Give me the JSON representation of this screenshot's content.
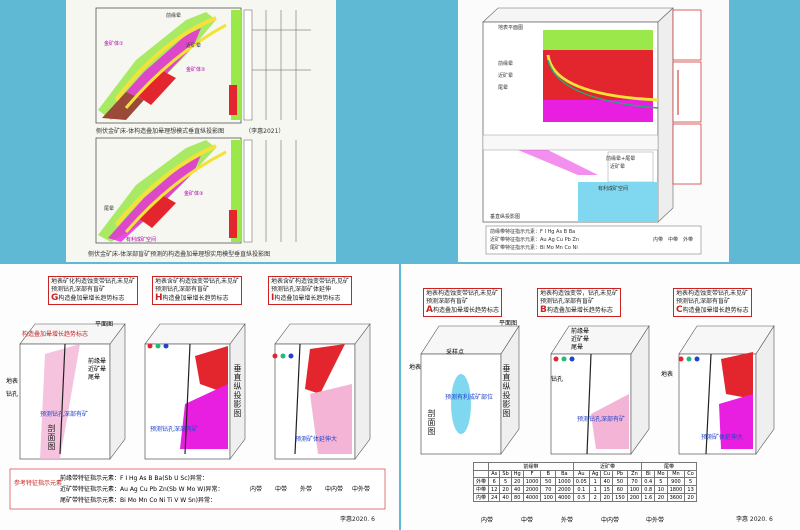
{
  "panel1": {
    "caption_top": "侧伏金矿床-体构造叠加晕理想模式垂直纵投影图　　　　（李惠2021）",
    "caption_bottom": "侧伏金矿床-体深部盲矿预测的构造叠加晕理想实用模型垂直纵投影图",
    "labels": [
      "金矿体①",
      "金矿体②",
      "金矿体③",
      "前缘晕",
      "近矿晕",
      "尾晕",
      "有利成矿空间"
    ]
  },
  "panel2": {
    "title": "地表平面图",
    "section_label": "垂直纵投影图",
    "side_labels": [
      "前缘晕",
      "近矿晕",
      "尾晕",
      "近矿晕",
      "前缘晕"
    ],
    "center_labels": [
      "前缘晕+尾晕",
      "近矿晕",
      "有利成矿空间"
    ],
    "legend_rows": [
      "前缘带特征指示元素：F I Hg As B Ba",
      "近矿带特征指示元素：Au Ag Cu Pb Zn",
      "尾矿带特征指示元素：Bi Mo Mn Co Ni"
    ],
    "legend_items": [
      "内带",
      "中带",
      "外带"
    ]
  },
  "panel3": {
    "boxes": [
      {
        "letter": "G",
        "line1": "地表矿化构造蚀变带钻孔未见矿",
        "line2": "预测钻孔深部有盲矿",
        "line3": "构造叠加晕增长趋势标志"
      },
      {
        "letter": "H",
        "line1": "地表含矿构造蚀变带钻孔未见矿",
        "line2": "预测钻孔深部有盲矿",
        "line3": "构造叠加晕增长趋势标志"
      },
      {
        "letter": "I",
        "line1": "地表含矿构造蚀变带钻孔见矿",
        "line2": "预测钻孔深部矿体延伸",
        "line3": "构造叠加晕增长趋势标志"
      }
    ],
    "labels": {
      "plane": "平面图",
      "surface": "地表",
      "drill": "钻孔",
      "section": "剖面图",
      "vertical": "垂直纵投影图",
      "predict": "预测钻孔深部有矿",
      "predict2": "预测矿体延伸大",
      "struct": "构造叠加晕增长趋势标志"
    },
    "halo_labels": [
      "前缘晕",
      "近矿晕",
      "尾晕"
    ],
    "legend_title": "参考特征指示元素",
    "legend_rows": [
      "前缘带特征指示元素：F I Hg As B Ba(Sb U Sc)异常：",
      "近矿带特征指示元素：Au Ag Cu Pb Zn(Sb W Mo W)异常：",
      "尾矿带特征指示元素：Bi Mo Mn Co Ni Ti V W Sn)异常："
    ],
    "legend_items": [
      "内带",
      "中带",
      "外带",
      "中内带",
      "中外带"
    ],
    "signature": "李惠2020. 6"
  },
  "panel4": {
    "boxes": [
      {
        "letter": "A",
        "line1": "地表构造蚀变带钻孔未见矿",
        "line2": "预测深部有盲矿",
        "line3": "构造叠加晕增长趋势标志"
      },
      {
        "letter": "B",
        "line1": "地表构造蚀变带，钻孔未见矿",
        "line2": "预测钻孔深部有盲矿",
        "line3": "构造叠加晕增长趋势标志"
      },
      {
        "letter": "C",
        "line1": "地表构造蚀变带钻孔未见矿",
        "line2": "预测钻孔深部有盲矿",
        "line3": "构造叠加晕增长趋势标志"
      }
    ],
    "labels": {
      "plane": "平面图",
      "surface": "地表",
      "drill": "钻孔",
      "section": "剖面图",
      "vertical": "垂直纵投影图",
      "sample": "采样点",
      "predict": "预测有利成矿部位",
      "predict2": "预测钻孔深部有矿",
      "predict3": "预测矿体延伸大"
    },
    "halo_labels": [
      "前缘晕",
      "近矿晕",
      "尾晕"
    ],
    "table": {
      "groups": [
        "前缘带",
        "近矿带",
        "尾带"
      ],
      "subheads": [
        "主",
        "次",
        "主",
        "次",
        "主",
        "次"
      ],
      "elements": [
        "As",
        "Sb",
        "Hg",
        "F",
        "B",
        "Ba",
        "Au",
        "Ag",
        "Cu",
        "Pb",
        "Zn",
        "Bi",
        "Mo",
        "Mn",
        "Co"
      ],
      "rows": [
        {
          "label": "外带",
          "values": [
            "6",
            "5",
            "20",
            "1000",
            "50",
            "1000",
            "0.05",
            "1",
            "40",
            "50",
            "70",
            "0.4",
            "5",
            "900",
            "5"
          ]
        },
        {
          "label": "中带",
          "values": [
            "12",
            "20",
            "40",
            "2000",
            "70",
            "2000",
            "0.1",
            "1",
            "15",
            "60",
            "100",
            "0.8",
            "10",
            "1800",
            "13"
          ]
        },
        {
          "label": "内带",
          "values": [
            "24",
            "40",
            "80",
            "4000",
            "100",
            "4000",
            "0.5",
            "2",
            "20",
            "150",
            "200",
            "1.6",
            "20",
            "3600",
            "20"
          ]
        }
      ]
    },
    "legend_items": [
      "内带",
      "中带",
      "外带",
      "中内带",
      "中外带"
    ],
    "signature": "李惠 2020. 6"
  },
  "colors": {
    "red": "#e3262e",
    "magenta": "#e81fe0",
    "lime": "#9be84b",
    "yellow": "#f2e23a",
    "cyan": "#7fd8f0",
    "brown": "#9b4a3a",
    "pink": "#f4b4d6"
  }
}
